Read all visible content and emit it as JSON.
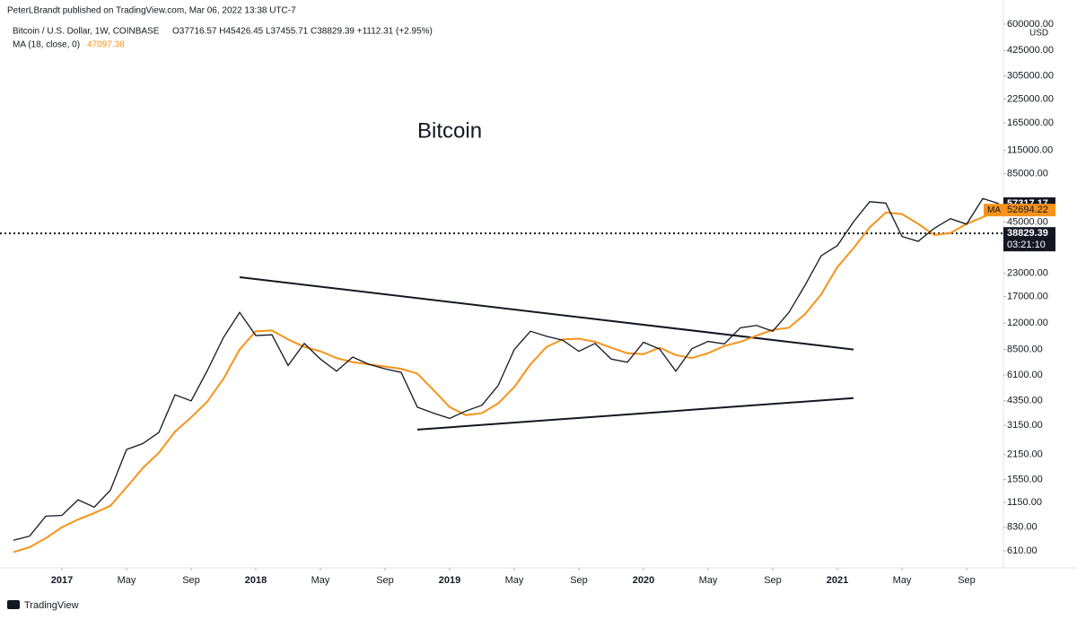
{
  "chart_data": {
    "type": "line",
    "publisher": "PeterLBrandt published on TradingView.com, Mar 06, 2022 13:38 UTC-7",
    "ohlc": "O37716.57 H45426.45 L37455.71 C38829.39 +1112.31 (+2.95%)",
    "legend_value": "47097.38",
    "annotation": "Bitcoin",
    "currency": "USD",
    "footer": "TradingView",
    "ma_tag": "MA",
    "last_price": 38829.39,
    "countdown": "03:21:10",
    "log_scale": true,
    "x": [
      "2016-10",
      "2016-11",
      "2016-12",
      "2017-01",
      "2017-02",
      "2017-03",
      "2017-04",
      "2017-05",
      "2017-06",
      "2017-07",
      "2017-08",
      "2017-09",
      "2017-10",
      "2017-11",
      "2017-12",
      "2018-01",
      "2018-02",
      "2018-03",
      "2018-04",
      "2018-05",
      "2018-06",
      "2018-07",
      "2018-08",
      "2018-09",
      "2018-10",
      "2018-11",
      "2018-12",
      "2019-01",
      "2019-02",
      "2019-03",
      "2019-04",
      "2019-05",
      "2019-06",
      "2019-07",
      "2019-08",
      "2019-09",
      "2019-10",
      "2019-11",
      "2019-12",
      "2020-01",
      "2020-02",
      "2020-03",
      "2020-04",
      "2020-05",
      "2020-06",
      "2020-07",
      "2020-08",
      "2020-09",
      "2020-10",
      "2020-11",
      "2020-12",
      "2021-01",
      "2021-02",
      "2021-03",
      "2021-04",
      "2021-05",
      "2021-06",
      "2021-07",
      "2021-08",
      "2021-09",
      "2021-10",
      "2021-11"
    ],
    "series": [
      {
        "name": "Bitcoin / U.S. Dollar, 1W, COINBASE",
        "color": "#131722",
        "values": [
          700,
          740,
          960,
          970,
          1190,
          1080,
          1350,
          2300,
          2480,
          2870,
          4700,
          4340,
          6450,
          9950,
          13800,
          10200,
          10300,
          6900,
          9200,
          7500,
          6400,
          7700,
          7000,
          6600,
          6300,
          4000,
          3700,
          3450,
          3800,
          4100,
          5300,
          8500,
          10800,
          10100,
          9600,
          8300,
          9200,
          7500,
          7200,
          9350,
          8550,
          6400,
          8600,
          9450,
          9150,
          11300,
          11650,
          10800,
          13800,
          19700,
          29000,
          33100,
          45200,
          58800,
          57700,
          37300,
          35000,
          41500,
          47100,
          43800,
          61300,
          57317.17
        ]
      },
      {
        "name": "MA (18, close, 0)",
        "color": "#f7931a",
        "values": [
          600,
          640,
          720,
          830,
          920,
          1000,
          1100,
          1400,
          1800,
          2200,
          2900,
          3500,
          4300,
          5800,
          8500,
          10800,
          10900,
          9700,
          8800,
          8300,
          7600,
          7200,
          7000,
          6800,
          6600,
          6200,
          5000,
          4000,
          3600,
          3700,
          4200,
          5200,
          7000,
          8800,
          9700,
          9800,
          9400,
          8700,
          8100,
          8000,
          8700,
          7900,
          7600,
          8100,
          8900,
          9400,
          10200,
          11000,
          11300,
          13500,
          17500,
          25000,
          32000,
          42000,
          51000,
          50000,
          44000,
          38000,
          39000,
          44000,
          48000,
          52694.22
        ]
      }
    ],
    "trendlines": [
      {
        "x": [
          "2017-12",
          "2021-02"
        ],
        "y": [
          21900,
          8500
        ]
      },
      {
        "x": [
          "2018-11",
          "2021-02"
        ],
        "y": [
          2980,
          4500
        ]
      }
    ],
    "ylim": [
      494,
      823000
    ],
    "yticks": [
      {
        "value": 610,
        "label": "610.00"
      },
      {
        "value": 830,
        "label": "830.00"
      },
      {
        "value": 1150,
        "label": "1150.00"
      },
      {
        "value": 1550,
        "label": "1550.00"
      },
      {
        "value": 2150,
        "label": "2150.00"
      },
      {
        "value": 3150,
        "label": "3150.00"
      },
      {
        "value": 4350,
        "label": "4350.00"
      },
      {
        "value": 6100,
        "label": "6100.00"
      },
      {
        "value": 8500,
        "label": "8500.00"
      },
      {
        "value": 12000,
        "label": "12000.00"
      },
      {
        "value": 17000,
        "label": "17000.00"
      },
      {
        "value": 23000,
        "label": "23000.00"
      },
      {
        "value": 45000,
        "label": "45000.00"
      },
      {
        "value": 85000,
        "label": "85000.00"
      },
      {
        "value": 115000,
        "label": "115000.00"
      },
      {
        "value": 165000,
        "label": "165000.00"
      },
      {
        "value": 225000,
        "label": "225000.00"
      },
      {
        "value": 305000,
        "label": "305000.00"
      },
      {
        "value": 425000,
        "label": "425000.00"
      },
      {
        "value": 600000,
        "label": "600000.00"
      }
    ],
    "xticks": [
      {
        "value": "2017-01",
        "label": "2017"
      },
      {
        "value": "2017-05",
        "label": "May"
      },
      {
        "value": "2017-09",
        "label": "Sep"
      },
      {
        "value": "2018-01",
        "label": "2018"
      },
      {
        "value": "2018-05",
        "label": "May"
      },
      {
        "value": "2018-09",
        "label": "Sep"
      },
      {
        "value": "2019-01",
        "label": "2019"
      },
      {
        "value": "2019-05",
        "label": "May"
      },
      {
        "value": "2019-09",
        "label": "Sep"
      },
      {
        "value": "2020-01",
        "label": "2020"
      },
      {
        "value": "2020-05",
        "label": "May"
      },
      {
        "value": "2020-09",
        "label": "Sep"
      },
      {
        "value": "2021-01",
        "label": "2021"
      },
      {
        "value": "2021-05",
        "label": "May"
      },
      {
        "value": "2021-09",
        "label": "Sep"
      }
    ]
  }
}
